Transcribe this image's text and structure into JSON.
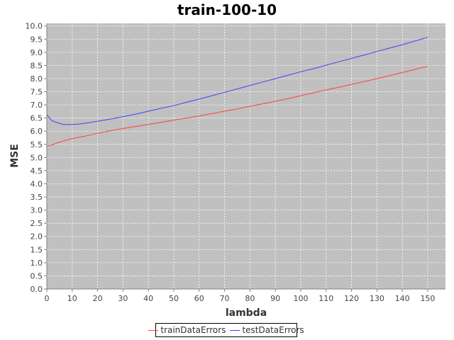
{
  "chart_data": {
    "type": "line",
    "title": "train-100-10",
    "xlabel": "lambda",
    "ylabel": "MSE",
    "xlim": [
      0,
      157
    ],
    "ylim": [
      0,
      10.1
    ],
    "xticks": [
      0,
      10,
      20,
      30,
      40,
      50,
      60,
      70,
      80,
      90,
      100,
      110,
      120,
      130,
      140,
      150
    ],
    "yticks": [
      0.0,
      0.5,
      1.0,
      1.5,
      2.0,
      2.5,
      3.0,
      3.5,
      4.0,
      4.5,
      5.0,
      5.5,
      6.0,
      6.5,
      7.0,
      7.5,
      8.0,
      8.5,
      9.0,
      9.5,
      10.0
    ],
    "ytick_labels": [
      "0.0",
      "0.5",
      "1.0",
      "1.5",
      "2.0",
      "2.5",
      "3.0",
      "3.5",
      "4.0",
      "4.5",
      "5.0",
      "5.5",
      "6.0",
      "6.5",
      "7.0",
      "7.5",
      "8.0",
      "8.5",
      "9.0",
      "9.5",
      "10.0"
    ],
    "grid": true,
    "legend_position": "bottom",
    "x": [
      0,
      2,
      4,
      6,
      8,
      10,
      12,
      15,
      20,
      25,
      30,
      35,
      40,
      45,
      50,
      55,
      60,
      65,
      70,
      75,
      80,
      85,
      90,
      95,
      100,
      105,
      110,
      115,
      120,
      125,
      130,
      135,
      140,
      145,
      150
    ],
    "series": [
      {
        "name": "trainDataErrors",
        "color": "#ff4040",
        "values": [
          5.43,
          5.48,
          5.55,
          5.61,
          5.67,
          5.72,
          5.76,
          5.81,
          5.92,
          6.02,
          6.1,
          6.18,
          6.26,
          6.34,
          6.42,
          6.5,
          6.58,
          6.67,
          6.76,
          6.85,
          6.95,
          7.04,
          7.14,
          7.24,
          7.35,
          7.46,
          7.57,
          7.67,
          7.78,
          7.89,
          8.0,
          8.11,
          8.23,
          8.35,
          8.47
        ]
      },
      {
        "name": "testDataErrors",
        "color": "#4040ff",
        "values": [
          6.62,
          6.4,
          6.33,
          6.27,
          6.25,
          6.25,
          6.27,
          6.3,
          6.38,
          6.46,
          6.55,
          6.65,
          6.76,
          6.87,
          6.97,
          7.1,
          7.22,
          7.35,
          7.48,
          7.61,
          7.74,
          7.87,
          8.0,
          8.13,
          8.26,
          8.38,
          8.51,
          8.64,
          8.77,
          8.9,
          9.03,
          9.16,
          9.29,
          9.43,
          9.57
        ]
      }
    ]
  }
}
